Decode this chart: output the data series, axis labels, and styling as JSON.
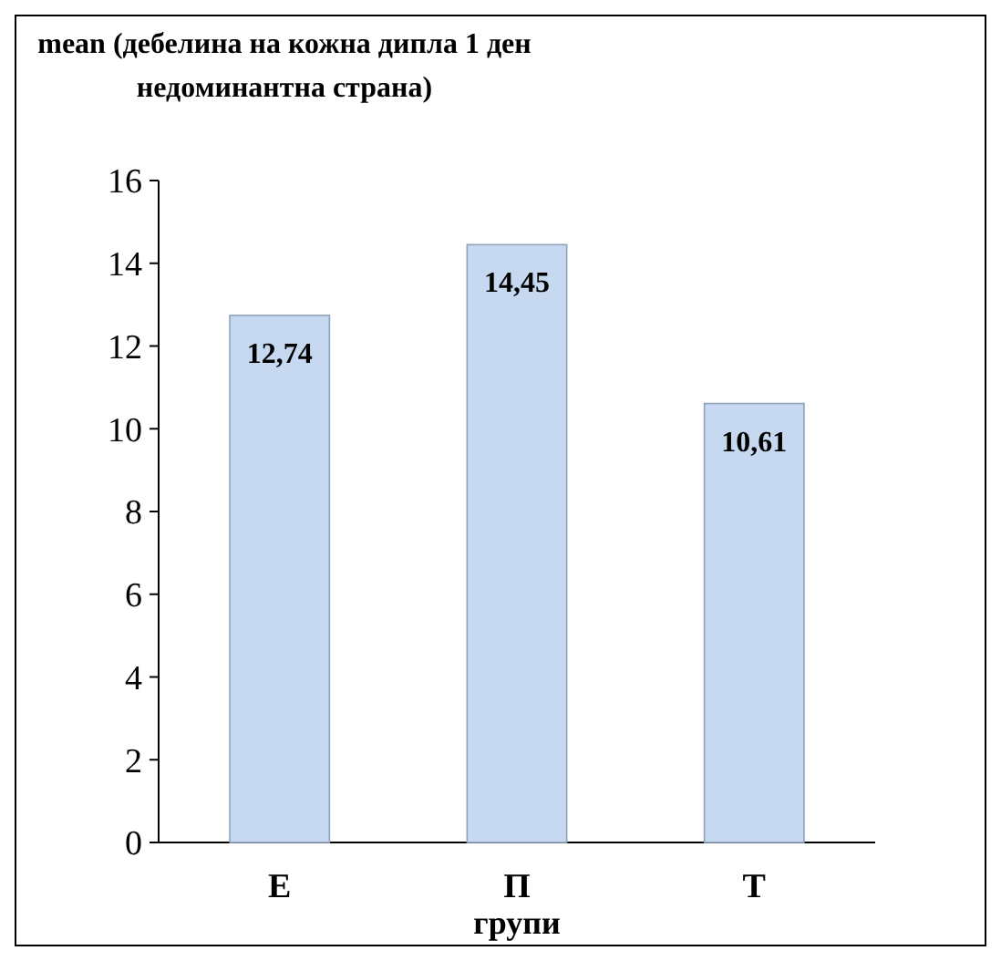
{
  "chart_data": {
    "type": "bar",
    "title": "mean (дебелина на кожна дипла 1 ден недоминантна страна)",
    "xlabel": "групи",
    "categories": [
      "Е",
      "П",
      "Т"
    ],
    "values": [
      12.74,
      14.45,
      10.61
    ],
    "value_labels": [
      "12,74",
      "14,45",
      "10,61"
    ],
    "color": "#c6d9f1",
    "ylim": [
      0,
      16
    ],
    "yticks": [
      0,
      2,
      4,
      6,
      8,
      10,
      12,
      14,
      16
    ],
    "grid": false
  }
}
